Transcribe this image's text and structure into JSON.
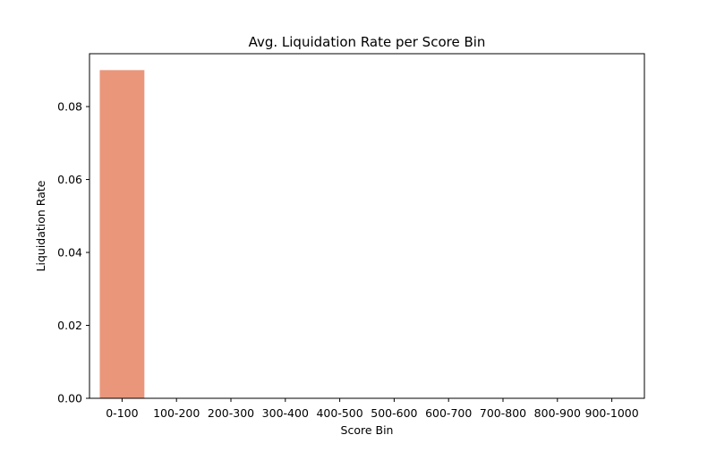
{
  "chart_data": {
    "type": "bar",
    "title": "Avg. Liquidation Rate per Score Bin",
    "xlabel": "Score Bin",
    "ylabel": "Liquidation Rate",
    "categories": [
      "0-100",
      "100-200",
      "200-300",
      "300-400",
      "400-500",
      "500-600",
      "600-700",
      "700-800",
      "800-900",
      "900-1000"
    ],
    "values": [
      0.09,
      0,
      0,
      0,
      0,
      0,
      0,
      0,
      0,
      0
    ],
    "ylim": [
      0,
      0.0945
    ],
    "yticks": [
      0.0,
      0.02,
      0.04,
      0.06,
      0.08
    ],
    "ytick_labels": [
      "0.00",
      "0.02",
      "0.04",
      "0.06",
      "0.08"
    ],
    "bar_color": "#e9967a",
    "grid": false,
    "legend": "none"
  }
}
